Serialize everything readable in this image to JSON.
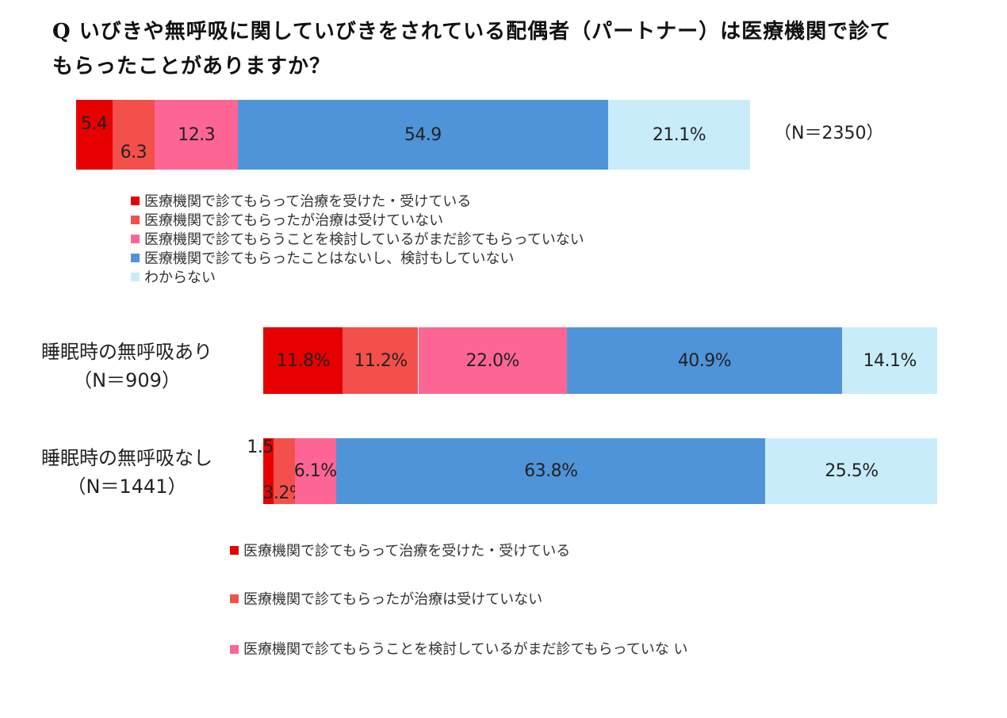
{
  "title": {
    "line1": "Q いびきや無呼吸に関していびきをされている配偶者（パートナー）は医療機関で診て",
    "line2": "もらったことがありますか？"
  },
  "colors": [
    "#e60000",
    "#f4504b",
    "#fd6694",
    "#4f94d9",
    "#c9ecfb"
  ],
  "legend": [
    "医療機関で診てもらって治療を受けた・受けている",
    "医療機関で診てもらったが治療は受けていない",
    "医療機関で診てもらうことを検討しているがまだ診てもらっていない",
    "医療機関で診てもらったことはないし、検討もしていない",
    "わからない"
  ],
  "bottom_legend": [
    "医療機関で診てもらって治療を受けた・受けている",
    "医療機関で診てもらったが治療は受けていない",
    "医療機関で診てもらうことを検討しているがまだ診てもらっていな い"
  ],
  "chart_data": [
    {
      "type": "bar",
      "orientation": "horizontal-stacked-100",
      "n_label": "（N＝2350）",
      "categories": [
        "医療機関で診てもらって治療を受けた・受けている",
        "医療機関で診てもらったが治療は受けていない",
        "医療機関で診てもらうことを検討しているがまだ診てもらっていない",
        "医療機関で診てもらったことはないし、検討もしていない",
        "わからない"
      ],
      "values": [
        5.4,
        6.3,
        12.3,
        54.9,
        21.1
      ],
      "labels": [
        "5.4",
        "6.3",
        "12.3",
        "54.9",
        "21.1%"
      ]
    },
    {
      "type": "bar",
      "orientation": "horizontal-stacked-100",
      "rows": [
        {
          "name": "睡眠時の無呼吸あり",
          "n_label": "（N＝909）",
          "values": [
            11.8,
            11.2,
            22.0,
            40.9,
            14.1
          ],
          "labels": [
            "11.8%",
            "11.2%",
            "22.0%",
            "40.9%",
            "14.1%"
          ]
        },
        {
          "name": "睡眠時の無呼吸なし",
          "n_label": "（N＝1441）",
          "values": [
            1.5,
            3.2,
            6.1,
            63.8,
            25.5
          ],
          "labels": [
            "1.5%",
            "3.2%",
            "6.1%",
            "63.8%",
            "25.5%"
          ]
        }
      ]
    }
  ]
}
